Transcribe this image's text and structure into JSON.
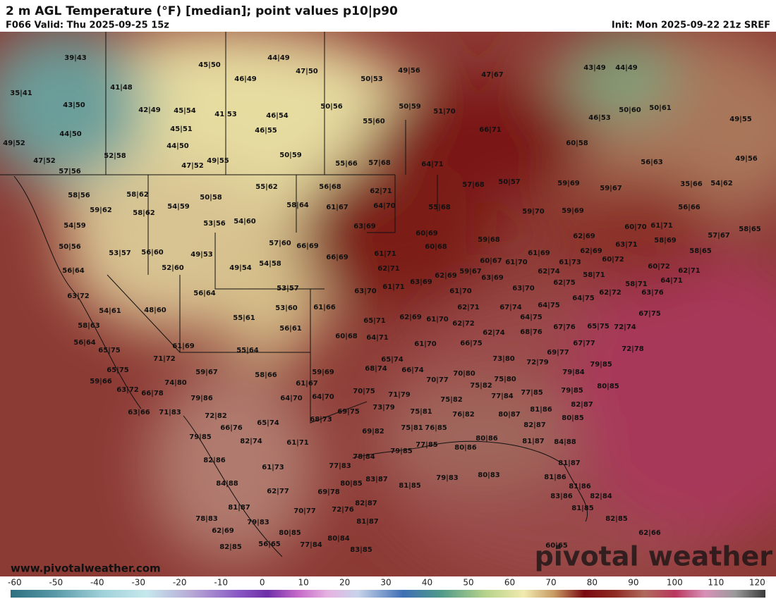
{
  "header": {
    "title": "2 m AGL Temperature (°F) [median]; point values p10|p90",
    "valid": "F066 Valid: Thu 2025-09-25 15z",
    "init": "Init: Mon 2025-09-22 21z SREF"
  },
  "watermark": {
    "url": "www.pivotalweather.com",
    "brand": "pivotal weather"
  },
  "colorbar": {
    "range": [
      -61,
      122
    ],
    "ticks": [
      -60,
      -50,
      -40,
      -30,
      -20,
      -10,
      0,
      10,
      20,
      30,
      40,
      50,
      60,
      70,
      80,
      90,
      100,
      110,
      120
    ]
  },
  "points": [
    "39|43",
    "44|49",
    "45|50",
    "47|50",
    "49|56",
    "47|67",
    "43|49",
    "44|49",
    "35|41",
    "41|48",
    "46|49",
    "50|53",
    "43|50",
    "42|49",
    "45|54",
    "41|53",
    "46|54",
    "50|56",
    "50|59",
    "51|70",
    "55|60",
    "66|71",
    "50|60",
    "50|61",
    "46|53",
    "49|55",
    "44|50",
    "45|51",
    "46|55",
    "49|52",
    "44|50",
    "60|58",
    "52|58",
    "50|59",
    "47|52",
    "47|52",
    "49|55",
    "55|66",
    "57|68",
    "64|71",
    "56|63",
    "49|56",
    "57|56",
    "55|62",
    "56|68",
    "62|71",
    "57|68",
    "50|57",
    "59|69",
    "59|67",
    "35|66",
    "54|62",
    "58|56",
    "58|62",
    "50|58",
    "58|64",
    "61|67",
    "64|70",
    "55|68",
    "56|66",
    "59|62",
    "54|59",
    "58|62",
    "59|70",
    "59|69",
    "54|59",
    "53|56",
    "54|60",
    "63|69",
    "60|69",
    "60|70",
    "61|71",
    "58|65",
    "57|67",
    "59|68",
    "62|69",
    "58|69",
    "57|60",
    "66|69",
    "60|68",
    "63|71",
    "50|56",
    "53|57",
    "56|60",
    "49|53",
    "61|71",
    "61|69",
    "62|69",
    "58|65",
    "66|69",
    "60|67",
    "61|70",
    "61|73",
    "60|72",
    "52|60",
    "49|54",
    "54|58",
    "62|71",
    "59|67",
    "62|74",
    "58|71",
    "60|72",
    "62|71",
    "56|64",
    "62|69",
    "63|69",
    "63|69",
    "61|71",
    "62|75",
    "64|71",
    "58|71",
    "53|57",
    "63|70",
    "61|70",
    "63|70",
    "62|72",
    "63|72",
    "56|64",
    "64|75",
    "63|76",
    "54|61",
    "48|60",
    "53|60",
    "61|66",
    "62|71",
    "67|74",
    "64|75",
    "67|75",
    "55|61",
    "62|69",
    "61|70",
    "65|71",
    "64|75",
    "58|63",
    "56|61",
    "62|72",
    "67|76",
    "65|75",
    "72|74",
    "60|68",
    "64|71",
    "62|74",
    "68|76",
    "56|64",
    "61|69",
    "61|70",
    "66|75",
    "67|77",
    "72|78",
    "65|75",
    "55|64",
    "69|77",
    "71|72",
    "65|74",
    "73|80",
    "72|79",
    "79|85",
    "68|74",
    "66|74",
    "70|80",
    "59|67",
    "59|69",
    "65|75",
    "79|84",
    "58|66",
    "75|80",
    "70|77",
    "59|66",
    "74|80",
    "61|67",
    "75|82",
    "77|85",
    "80|85",
    "79|85",
    "63|72",
    "70|75",
    "71|79",
    "66|78",
    "79|86",
    "64|70",
    "64|70",
    "77|84",
    "75|82",
    "82|87",
    "73|79",
    "69|75",
    "63|66",
    "71|83",
    "75|81",
    "81|86",
    "80|87",
    "72|82",
    "76|82",
    "65|74",
    "68|73",
    "80|85",
    "82|87",
    "66|76",
    "75|81",
    "76|85",
    "69|82",
    "79|85",
    "80|86",
    "82|74",
    "61|71",
    "81|87",
    "84|88",
    "79|85",
    "77|85",
    "80|86",
    "82|86",
    "78|84",
    "77|83",
    "61|73",
    "81|87",
    "83|87",
    "81|85",
    "79|83",
    "80|83",
    "84|88",
    "80|85",
    "81|86",
    "62|77",
    "69|78",
    "81|86",
    "83|86",
    "82|84",
    "81|87",
    "82|87",
    "70|77",
    "72|76",
    "81|85",
    "78|83",
    "79|83",
    "81|87",
    "82|85",
    "62|69",
    "80|85",
    "62|66",
    "80|84",
    "82|85",
    "56|65",
    "77|84",
    "83|85",
    "60|65"
  ]
}
